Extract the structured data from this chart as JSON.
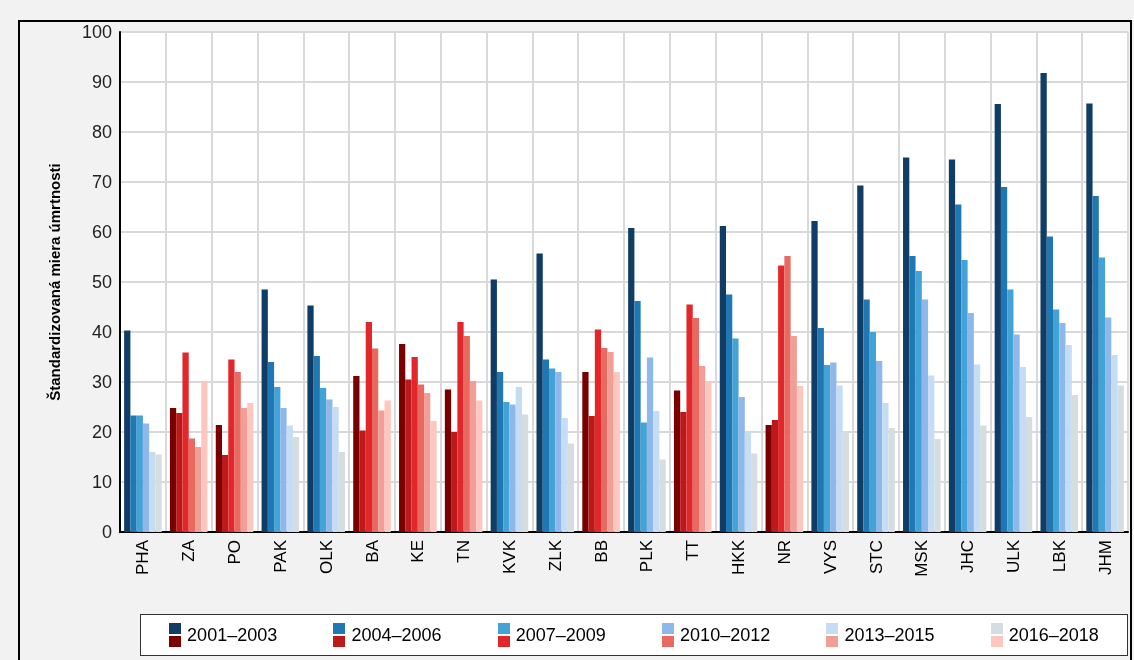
{
  "chart_data": {
    "type": "bar",
    "ylabel": "Štandardizovaná miera úmrtnosti",
    "categories": [
      "PHA",
      "ZA",
      "PO",
      "PAK",
      "OLK",
      "BA",
      "KE",
      "TN",
      "KVK",
      "ZLK",
      "BB",
      "PLK",
      "TT",
      "HKK",
      "NR",
      "VYS",
      "STC",
      "MSK",
      "JHC",
      "ULK",
      "LBK",
      "JHM"
    ],
    "ylim": [
      0,
      100
    ],
    "yticks": [
      0,
      10,
      20,
      30,
      40,
      50,
      60,
      70,
      80,
      90,
      100
    ],
    "grid": true,
    "legend": "bottom",
    "series": [
      {
        "name": "2001–2003",
        "color": "#0f3d66",
        "values": [
          40.3,
          24.8,
          21.4,
          48.5,
          45.3,
          31.2,
          37.6,
          28.5,
          50.5,
          55.7,
          32,
          60.8,
          28.3,
          61.2,
          21.4,
          62.2,
          69.3,
          74.9,
          74.5,
          85.6,
          91.8,
          85.7
        ],
        "colors": [
          "#0f3d66",
          "#7a0000",
          "#7a0000",
          "#0f3d66",
          "#0f3d66",
          "#7a0000",
          "#7a0000",
          "#7a0000",
          "#0f3d66",
          "#0f3d66",
          "#7a0000",
          "#0f3d66",
          "#7a0000",
          "#0f3d66",
          "#7a0000",
          "#0f3d66",
          "#0f3d66",
          "#0f3d66",
          "#0f3d66",
          "#0f3d66",
          "#0f3d66",
          "#0f3d66"
        ]
      },
      {
        "name": "2004–2006",
        "color": "#1f78b4",
        "values": [
          23.3,
          23.8,
          15.4,
          34,
          35.2,
          20.3,
          30.5,
          20,
          32,
          34.5,
          23.2,
          46.2,
          24,
          47.5,
          22.4,
          40.8,
          46.5,
          55.2,
          65.5,
          69,
          59.1,
          67.2
        ],
        "colors": [
          "#1f78b4",
          "#bb1a1a",
          "#bb1a1a",
          "#1f78b4",
          "#1f78b4",
          "#bb1a1a",
          "#bb1a1a",
          "#bb1a1a",
          "#1f78b4",
          "#1f78b4",
          "#bb1a1a",
          "#1f78b4",
          "#bb1a1a",
          "#1f78b4",
          "#bb1a1a",
          "#1f78b4",
          "#1f78b4",
          "#1f78b4",
          "#1f78b4",
          "#1f78b4",
          "#1f78b4",
          "#1f78b4"
        ]
      },
      {
        "name": "2007–2009",
        "color": "#43a2d6",
        "values": [
          23.3,
          35.9,
          34.5,
          29,
          28.8,
          42,
          35,
          42,
          26,
          32.7,
          40.5,
          21.9,
          45.5,
          38.7,
          53.3,
          33.4,
          40,
          52.2,
          54.4,
          48.5,
          44.5,
          54.9
        ],
        "colors": [
          "#43a2d6",
          "#e3262a",
          "#e3262a",
          "#43a2d6",
          "#43a2d6",
          "#e3262a",
          "#e3262a",
          "#e3262a",
          "#43a2d6",
          "#43a2d6",
          "#e3262a",
          "#43a2d6",
          "#e3262a",
          "#43a2d6",
          "#e3262a",
          "#43a2d6",
          "#43a2d6",
          "#43a2d6",
          "#43a2d6",
          "#43a2d6",
          "#43a2d6",
          "#43a2d6"
        ]
      },
      {
        "name": "2010–2012",
        "color": "#8fb8ea",
        "values": [
          21.7,
          18.7,
          32,
          24.8,
          26.5,
          36.7,
          29.5,
          39.2,
          25.5,
          32,
          36.8,
          34.9,
          42.8,
          27,
          55.2,
          33.9,
          34.2,
          46.5,
          43.8,
          39.5,
          41.8,
          42.9
        ],
        "colors": [
          "#8fb8ea",
          "#e8695f",
          "#e8695f",
          "#8fb8ea",
          "#8fb8ea",
          "#e8695f",
          "#e8695f",
          "#e8695f",
          "#8fb8ea",
          "#8fb8ea",
          "#e8695f",
          "#8fb8ea",
          "#e8695f",
          "#8fb8ea",
          "#e8695f",
          "#8fb8ea",
          "#8fb8ea",
          "#8fb8ea",
          "#8fb8ea",
          "#8fb8ea",
          "#8fb8ea",
          "#8fb8ea"
        ]
      },
      {
        "name": "2013–2015",
        "color": "#c5dcf5",
        "values": [
          16,
          17,
          24.8,
          21.3,
          25,
          24.3,
          27.8,
          30.2,
          29,
          22.8,
          36,
          24.2,
          33.2,
          19.9,
          39.2,
          29.3,
          25.8,
          31.3,
          33.5,
          33,
          37.4,
          35.4
        ],
        "colors": [
          "#c5dcf5",
          "#f19e96",
          "#f19e96",
          "#c5dcf5",
          "#c5dcf5",
          "#f19e96",
          "#f19e96",
          "#f19e96",
          "#c5dcf5",
          "#c5dcf5",
          "#f19e96",
          "#c5dcf5",
          "#f19e96",
          "#c5dcf5",
          "#f19e96",
          "#c5dcf5",
          "#c5dcf5",
          "#c5dcf5",
          "#c5dcf5",
          "#c5dcf5",
          "#c5dcf5",
          "#c5dcf5"
        ]
      },
      {
        "name": "2016–2018",
        "color": "#d5dde0",
        "values": [
          15.5,
          30.1,
          25.8,
          19,
          16,
          26.3,
          22.2,
          26.3,
          23.5,
          17.7,
          32,
          14.5,
          30.2,
          15.7,
          29.2,
          20.1,
          20.8,
          18.6,
          21.3,
          23,
          27.4,
          29.3
        ],
        "colors": [
          "#d5dde0",
          "#fdc7c0",
          "#fdc7c0",
          "#d5dde0",
          "#d5dde0",
          "#fdc7c0",
          "#fdc7c0",
          "#fdc7c0",
          "#d5dde0",
          "#d5dde0",
          "#fdc7c0",
          "#d5dde0",
          "#fdc7c0",
          "#d5dde0",
          "#fdc7c0",
          "#d5dde0",
          "#d5dde0",
          "#d5dde0",
          "#d5dde0",
          "#d5dde0",
          "#d5dde0",
          "#d5dde0"
        ]
      }
    ]
  }
}
